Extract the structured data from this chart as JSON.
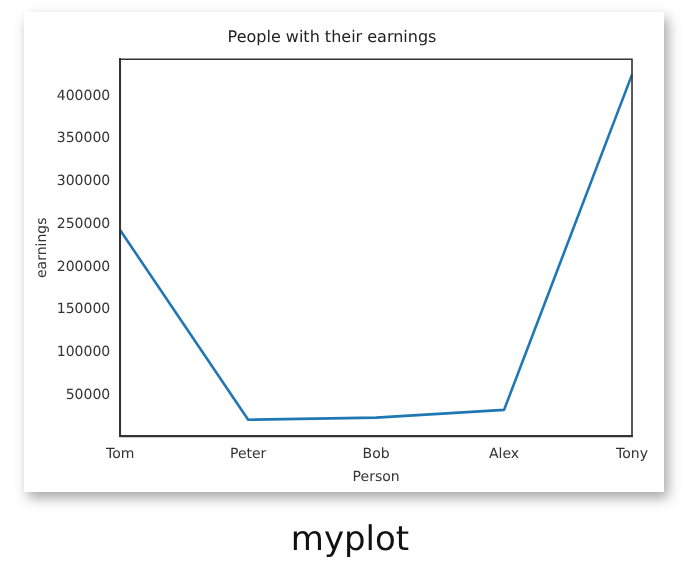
{
  "chart_data": {
    "type": "line",
    "title": "People with their earnings",
    "xlabel": "Person",
    "ylabel": "earnings",
    "categories": [
      "Tom",
      "Peter",
      "Bob",
      "Alex",
      "Tony"
    ],
    "series": [
      {
        "color": "#1f77b4",
        "values": [
          243000,
          21500,
          24000,
          33000,
          425000
        ]
      }
    ],
    "ylim": [
      2000,
      443000
    ],
    "yticks": [
      50000,
      100000,
      150000,
      200000,
      250000,
      300000,
      350000,
      400000
    ],
    "grid": false,
    "legend": false,
    "marker": "none",
    "line_style": "solid",
    "annotations": [
      "myplot"
    ]
  }
}
